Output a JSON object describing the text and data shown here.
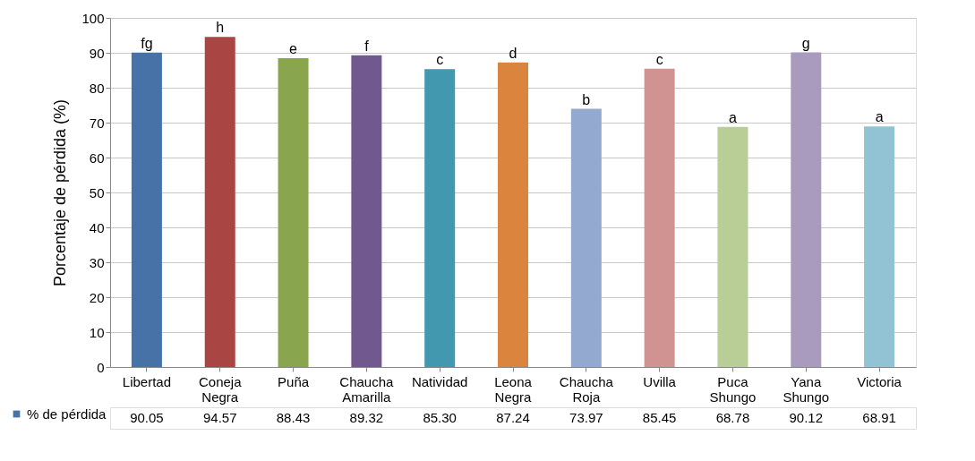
{
  "chart_data": {
    "type": "bar",
    "ylabel": "Porcentaje de pérdida (%)",
    "categories": [
      "Libertad",
      "Coneja Negra",
      "Puña",
      "Chaucha Amarilla",
      "Natividad",
      "Leona Negra",
      "Chaucha Roja",
      "Uvilla",
      "Puca Shungo",
      "Yana Shungo",
      "Victoria"
    ],
    "series": [
      {
        "name": "% de pérdida",
        "color": "#4672a8",
        "colors": [
          "#4672a8",
          "#a94643",
          "#89a54e",
          "#71588f",
          "#4198af",
          "#db843d",
          "#93a9cf",
          "#d19392",
          "#b9cd96",
          "#a99bbd",
          "#91c3d5"
        ],
        "values": [
          90.05,
          94.57,
          88.43,
          89.32,
          85.3,
          87.24,
          73.97,
          85.45,
          68.78,
          90.12,
          68.91
        ],
        "value_labels": [
          "90.05",
          "94.57",
          "88.43",
          "89.32",
          "85.30",
          "87.24",
          "73.97",
          "85.45",
          "68.78",
          "90.12",
          "68.91"
        ]
      }
    ],
    "ylim": [
      0,
      100
    ],
    "yticks": [
      0,
      10,
      20,
      30,
      40,
      50,
      60,
      70,
      80,
      90,
      100
    ],
    "grid": "y",
    "legend": "bottom left",
    "annotations": [
      {
        "text": "fg",
        "x": "Libertad",
        "y": 90.05
      },
      {
        "text": "h",
        "x": "Coneja Negra",
        "y": 94.57
      },
      {
        "text": "e",
        "x": "Puña",
        "y": 88.43
      },
      {
        "text": "f",
        "x": "Chaucha Amarilla",
        "y": 89.32
      },
      {
        "text": "c",
        "x": "Natividad",
        "y": 85.3
      },
      {
        "text": "d",
        "x": "Leona Negra",
        "y": 87.24
      },
      {
        "text": "b",
        "x": "Chaucha Roja",
        "y": 73.97
      },
      {
        "text": "c",
        "x": "Uvilla",
        "y": 85.45
      },
      {
        "text": "a",
        "x": "Puca Shungo",
        "y": 68.78
      },
      {
        "text": "g",
        "x": "Yana Shungo",
        "y": 90.12
      },
      {
        "text": "a",
        "x": "Victoria",
        "y": 68.91
      }
    ]
  }
}
